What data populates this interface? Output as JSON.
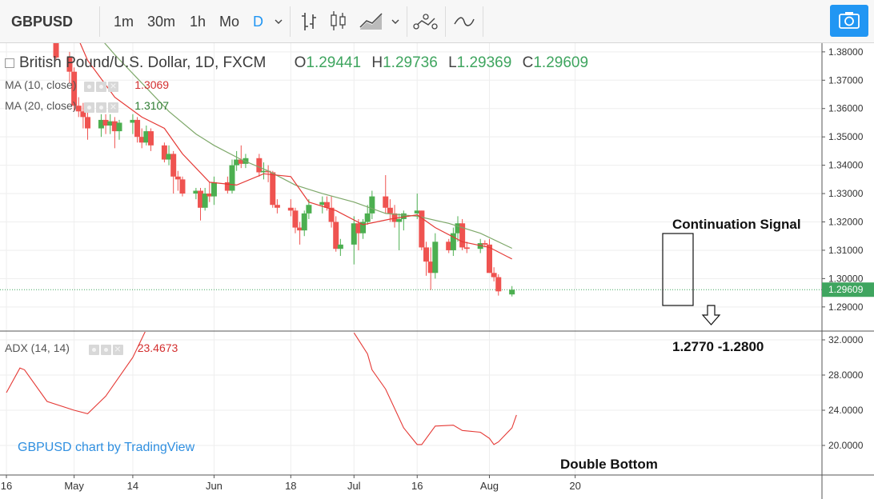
{
  "toolbar": {
    "symbol": "GBPUSD",
    "intervals": [
      "1m",
      "30m",
      "1h",
      "Mo",
      "D"
    ],
    "active_interval": "D",
    "dropdown_icon": "chevron-down-icon",
    "tools": [
      "bar-chart-icon",
      "candles-icon",
      "area-chart-icon",
      "chevron-down-icon",
      "indicators-icon",
      "compare-icon"
    ],
    "snapshot_icon": "camera-icon",
    "accent": "#2196f3"
  },
  "legend": {
    "instrument": "British Pound/U.S. Dollar, 1D, FXCM",
    "o_label": "O",
    "o": "1.29441",
    "h_label": "H",
    "h": "1.29736",
    "l_label": "L",
    "l": "1.29369",
    "c_label": "C",
    "c": "1.29609",
    "ma10_name": "MA (10, close)",
    "ma10_value": "1.3069",
    "ma20_name": "MA (20, close)",
    "ma20_value": "1.3107",
    "adx_name": "ADX (14, 14)",
    "adx_value": "23.4673"
  },
  "annotations": {
    "continuation": "Continuation Signal",
    "target": "1.2770 -1.2800",
    "double_bottom": "Double Bottom",
    "watermark": "GBPUSD chart by TradingView"
  },
  "colors": {
    "up": "#4caf50",
    "down": "#ef5350",
    "ma10": "#e53935",
    "ma20": "#7ea86a",
    "adx": "#e53935",
    "price_tag": "#3fa55f"
  },
  "chart_data": [
    {
      "type": "candlestick",
      "title": "British Pound/U.S. Dollar, 1D, FXCM",
      "ylim": [
        1.2825,
        1.3825
      ],
      "y_ticks": [
        "1.38000",
        "1.37000",
        "1.36000",
        "1.35000",
        "1.34000",
        "1.33000",
        "1.32000",
        "1.31000",
        "1.30000",
        "1.29000"
      ],
      "current_price": "1.29609",
      "x_tick_labels": [
        {
          "label": "16",
          "date": "2018-04-16"
        },
        {
          "label": "May",
          "date": "2018-05-01"
        },
        {
          "label": "14",
          "date": "2018-05-14"
        },
        {
          "label": "Jun",
          "date": "2018-06-01"
        },
        {
          "label": "18",
          "date": "2018-06-18"
        },
        {
          "label": "Jul",
          "date": "2018-07-02"
        },
        {
          "label": "16",
          "date": "2018-07-16"
        },
        {
          "label": "Aug",
          "date": "2018-08-01"
        },
        {
          "label": "20",
          "date": "2018-08-20"
        }
      ],
      "candles": [
        {
          "date": "2018-04-27",
          "o": 1.393,
          "h": 1.396,
          "l": 1.377,
          "c": 1.378
        },
        {
          "date": "2018-04-30",
          "o": 1.378,
          "h": 1.38,
          "l": 1.369,
          "c": 1.373
        },
        {
          "date": "2018-05-01",
          "o": 1.373,
          "h": 1.3745,
          "l": 1.359,
          "c": 1.361
        },
        {
          "date": "2018-05-02",
          "o": 1.361,
          "h": 1.364,
          "l": 1.357,
          "c": 1.359
        },
        {
          "date": "2018-05-03",
          "o": 1.359,
          "h": 1.362,
          "l": 1.353,
          "c": 1.357
        },
        {
          "date": "2018-05-04",
          "o": 1.357,
          "h": 1.36,
          "l": 1.349,
          "c": 1.353
        },
        {
          "date": "2018-05-07",
          "o": 1.353,
          "h": 1.358,
          "l": 1.35,
          "c": 1.356
        },
        {
          "date": "2018-05-08",
          "o": 1.356,
          "h": 1.358,
          "l": 1.351,
          "c": 1.354
        },
        {
          "date": "2018-05-09",
          "o": 1.354,
          "h": 1.358,
          "l": 1.351,
          "c": 1.3555
        },
        {
          "date": "2018-05-10",
          "o": 1.3555,
          "h": 1.357,
          "l": 1.346,
          "c": 1.352
        },
        {
          "date": "2018-05-11",
          "o": 1.352,
          "h": 1.356,
          "l": 1.349,
          "c": 1.355
        },
        {
          "date": "2018-05-14",
          "o": 1.355,
          "h": 1.358,
          "l": 1.351,
          "c": 1.356
        },
        {
          "date": "2018-05-15",
          "o": 1.356,
          "h": 1.357,
          "l": 1.348,
          "c": 1.35
        },
        {
          "date": "2018-05-16",
          "o": 1.35,
          "h": 1.353,
          "l": 1.346,
          "c": 1.348
        },
        {
          "date": "2018-05-17",
          "o": 1.348,
          "h": 1.354,
          "l": 1.347,
          "c": 1.352
        },
        {
          "date": "2018-05-18",
          "o": 1.352,
          "h": 1.353,
          "l": 1.345,
          "c": 1.347
        },
        {
          "date": "2018-05-21",
          "o": 1.347,
          "h": 1.348,
          "l": 1.341,
          "c": 1.342
        },
        {
          "date": "2018-05-22",
          "o": 1.342,
          "h": 1.347,
          "l": 1.34,
          "c": 1.344
        },
        {
          "date": "2018-05-23",
          "o": 1.344,
          "h": 1.345,
          "l": 1.33,
          "c": 1.336
        },
        {
          "date": "2018-05-24",
          "o": 1.336,
          "h": 1.338,
          "l": 1.331,
          "c": 1.335
        },
        {
          "date": "2018-05-25",
          "o": 1.335,
          "h": 1.336,
          "l": 1.329,
          "c": 1.33
        },
        {
          "date": "2018-05-28",
          "o": 1.33,
          "h": 1.332,
          "l": 1.328,
          "c": 1.331
        },
        {
          "date": "2018-05-29",
          "o": 1.331,
          "h": 1.332,
          "l": 1.3205,
          "c": 1.325
        },
        {
          "date": "2018-05-30",
          "o": 1.325,
          "h": 1.332,
          "l": 1.324,
          "c": 1.33
        },
        {
          "date": "2018-05-31",
          "o": 1.33,
          "h": 1.334,
          "l": 1.327,
          "c": 1.329
        },
        {
          "date": "2018-06-01",
          "o": 1.329,
          "h": 1.336,
          "l": 1.326,
          "c": 1.334
        },
        {
          "date": "2018-06-04",
          "o": 1.334,
          "h": 1.336,
          "l": 1.33,
          "c": 1.331
        },
        {
          "date": "2018-06-05",
          "o": 1.331,
          "h": 1.342,
          "l": 1.33,
          "c": 1.34
        },
        {
          "date": "2018-06-06",
          "o": 1.34,
          "h": 1.345,
          "l": 1.338,
          "c": 1.342
        },
        {
          "date": "2018-06-07",
          "o": 1.342,
          "h": 1.347,
          "l": 1.339,
          "c": 1.3405
        },
        {
          "date": "2018-06-08",
          "o": 1.3405,
          "h": 1.344,
          "l": 1.339,
          "c": 1.3425
        },
        {
          "date": "2018-06-11",
          "o": 1.3425,
          "h": 1.344,
          "l": 1.336,
          "c": 1.3375
        },
        {
          "date": "2018-06-12",
          "o": 1.3375,
          "h": 1.341,
          "l": 1.335,
          "c": 1.338
        },
        {
          "date": "2018-06-13",
          "o": 1.338,
          "h": 1.34,
          "l": 1.334,
          "c": 1.3375
        },
        {
          "date": "2018-06-14",
          "o": 1.3375,
          "h": 1.338,
          "l": 1.325,
          "c": 1.326
        },
        {
          "date": "2018-06-15",
          "o": 1.326,
          "h": 1.328,
          "l": 1.323,
          "c": 1.325
        },
        {
          "date": "2018-06-18",
          "o": 1.325,
          "h": 1.328,
          "l": 1.322,
          "c": 1.324
        },
        {
          "date": "2018-06-19",
          "o": 1.324,
          "h": 1.325,
          "l": 1.316,
          "c": 1.318
        },
        {
          "date": "2018-06-20",
          "o": 1.318,
          "h": 1.32,
          "l": 1.312,
          "c": 1.317
        },
        {
          "date": "2018-06-21",
          "o": 1.317,
          "h": 1.324,
          "l": 1.315,
          "c": 1.323
        },
        {
          "date": "2018-06-22",
          "o": 1.323,
          "h": 1.328,
          "l": 1.321,
          "c": 1.326
        },
        {
          "date": "2018-06-25",
          "o": 1.326,
          "h": 1.329,
          "l": 1.323,
          "c": 1.327
        },
        {
          "date": "2018-06-26",
          "o": 1.327,
          "h": 1.329,
          "l": 1.324,
          "c": 1.325
        },
        {
          "date": "2018-06-27",
          "o": 1.325,
          "h": 1.329,
          "l": 1.318,
          "c": 1.32
        },
        {
          "date": "2018-06-28",
          "o": 1.32,
          "h": 1.322,
          "l": 1.3095,
          "c": 1.3105
        },
        {
          "date": "2018-06-29",
          "o": 1.3105,
          "h": 1.314,
          "l": 1.308,
          "c": 1.312
        },
        {
          "date": "2018-07-02",
          "o": 1.312,
          "h": 1.322,
          "l": 1.305,
          "c": 1.3195
        },
        {
          "date": "2018-07-03",
          "o": 1.3195,
          "h": 1.321,
          "l": 1.31,
          "c": 1.316
        },
        {
          "date": "2018-07-04",
          "o": 1.316,
          "h": 1.321,
          "l": 1.314,
          "c": 1.32
        },
        {
          "date": "2018-07-05",
          "o": 1.32,
          "h": 1.326,
          "l": 1.319,
          "c": 1.323
        },
        {
          "date": "2018-07-06",
          "o": 1.323,
          "h": 1.331,
          "l": 1.321,
          "c": 1.329
        },
        {
          "date": "2018-07-09",
          "o": 1.329,
          "h": 1.3365,
          "l": 1.323,
          "c": 1.325
        },
        {
          "date": "2018-07-10",
          "o": 1.325,
          "h": 1.328,
          "l": 1.32,
          "c": 1.323
        },
        {
          "date": "2018-07-11",
          "o": 1.323,
          "h": 1.326,
          "l": 1.318,
          "c": 1.32
        },
        {
          "date": "2018-07-12",
          "o": 1.32,
          "h": 1.323,
          "l": 1.31,
          "c": 1.321
        },
        {
          "date": "2018-07-13",
          "o": 1.321,
          "h": 1.324,
          "l": 1.317,
          "c": 1.323
        },
        {
          "date": "2018-07-16",
          "o": 1.323,
          "h": 1.33,
          "l": 1.321,
          "c": 1.324
        },
        {
          "date": "2018-07-17",
          "o": 1.324,
          "h": 1.324,
          "l": 1.31,
          "c": 1.311
        },
        {
          "date": "2018-07-18",
          "o": 1.311,
          "h": 1.313,
          "l": 1.301,
          "c": 1.306
        },
        {
          "date": "2018-07-19",
          "o": 1.306,
          "h": 1.311,
          "l": 1.296,
          "c": 1.302
        },
        {
          "date": "2018-07-20",
          "o": 1.302,
          "h": 1.316,
          "l": 1.3,
          "c": 1.313
        },
        {
          "date": "2018-07-23",
          "o": 1.313,
          "h": 1.314,
          "l": 1.309,
          "c": 1.31
        },
        {
          "date": "2018-07-24",
          "o": 1.31,
          "h": 1.318,
          "l": 1.308,
          "c": 1.316
        },
        {
          "date": "2018-07-25",
          "o": 1.316,
          "h": 1.322,
          "l": 1.313,
          "c": 1.3195
        },
        {
          "date": "2018-07-26",
          "o": 1.3195,
          "h": 1.321,
          "l": 1.31,
          "c": 1.311
        },
        {
          "date": "2018-07-27",
          "o": 1.311,
          "h": 1.313,
          "l": 1.309,
          "c": 1.3105
        },
        {
          "date": "2018-07-30",
          "o": 1.3105,
          "h": 1.314,
          "l": 1.309,
          "c": 1.3125
        },
        {
          "date": "2018-07-31",
          "o": 1.3125,
          "h": 1.3135,
          "l": 1.311,
          "c": 1.312
        },
        {
          "date": "2018-08-01",
          "o": 1.312,
          "h": 1.314,
          "l": 1.302,
          "c": 1.302
        },
        {
          "date": "2018-08-02",
          "o": 1.302,
          "h": 1.304,
          "l": 1.299,
          "c": 1.3005
        },
        {
          "date": "2018-08-03",
          "o": 1.3005,
          "h": 1.3015,
          "l": 1.294,
          "c": 1.2955
        },
        {
          "date": "2018-08-06",
          "o": 1.29441,
          "h": 1.29736,
          "l": 1.29369,
          "c": 1.29609
        }
      ],
      "ma10": [
        {
          "date": "2018-05-01",
          "v": 1.388
        },
        {
          "date": "2018-05-04",
          "v": 1.377
        },
        {
          "date": "2018-05-10",
          "v": 1.364
        },
        {
          "date": "2018-05-16",
          "v": 1.357
        },
        {
          "date": "2018-05-21",
          "v": 1.353
        },
        {
          "date": "2018-05-25",
          "v": 1.344
        },
        {
          "date": "2018-05-31",
          "v": 1.334
        },
        {
          "date": "2018-06-06",
          "v": 1.333
        },
        {
          "date": "2018-06-12",
          "v": 1.337
        },
        {
          "date": "2018-06-18",
          "v": 1.336
        },
        {
          "date": "2018-06-22",
          "v": 1.327
        },
        {
          "date": "2018-06-28",
          "v": 1.324
        },
        {
          "date": "2018-07-04",
          "v": 1.319
        },
        {
          "date": "2018-07-10",
          "v": 1.321
        },
        {
          "date": "2018-07-16",
          "v": 1.3225
        },
        {
          "date": "2018-07-20",
          "v": 1.318
        },
        {
          "date": "2018-07-26",
          "v": 1.313
        },
        {
          "date": "2018-08-01",
          "v": 1.311
        },
        {
          "date": "2018-08-06",
          "v": 1.3069
        }
      ],
      "ma20": [
        {
          "date": "2018-05-04",
          "v": 1.39
        },
        {
          "date": "2018-05-10",
          "v": 1.379
        },
        {
          "date": "2018-05-16",
          "v": 1.369
        },
        {
          "date": "2018-05-22",
          "v": 1.359
        },
        {
          "date": "2018-05-28",
          "v": 1.351
        },
        {
          "date": "2018-06-01",
          "v": 1.347
        },
        {
          "date": "2018-06-07",
          "v": 1.342
        },
        {
          "date": "2018-06-13",
          "v": 1.338
        },
        {
          "date": "2018-06-19",
          "v": 1.333
        },
        {
          "date": "2018-06-25",
          "v": 1.33
        },
        {
          "date": "2018-07-02",
          "v": 1.327
        },
        {
          "date": "2018-07-09",
          "v": 1.323
        },
        {
          "date": "2018-07-16",
          "v": 1.322
        },
        {
          "date": "2018-07-23",
          "v": 1.3195
        },
        {
          "date": "2018-07-30",
          "v": 1.316
        },
        {
          "date": "2018-08-06",
          "v": 1.3107
        }
      ]
    },
    {
      "type": "line",
      "title": "ADX (14, 14)",
      "ylim": [
        17.0,
        33.0
      ],
      "y_ticks": [
        "32.0000",
        "28.0000",
        "24.0000",
        "20.0000"
      ],
      "series": [
        {
          "name": "ADX (14, 14)",
          "points": [
            {
              "date": "2018-04-16",
              "v": 26.0
            },
            {
              "date": "2018-04-19",
              "v": 28.8
            },
            {
              "date": "2018-04-20",
              "v": 28.6
            },
            {
              "date": "2018-04-25",
              "v": 25.0
            },
            {
              "date": "2018-05-01",
              "v": 24.0
            },
            {
              "date": "2018-05-04",
              "v": 23.6
            },
            {
              "date": "2018-05-08",
              "v": 25.6
            },
            {
              "date": "2018-05-14",
              "v": 30.0
            },
            {
              "date": "2018-05-17",
              "v": 33.2
            }
          ]
        },
        {
          "name": "ADX (14, 14)",
          "points": [
            {
              "date": "2018-07-02",
              "v": 32.8
            },
            {
              "date": "2018-07-05",
              "v": 30.4
            },
            {
              "date": "2018-07-06",
              "v": 28.6
            },
            {
              "date": "2018-07-09",
              "v": 26.4
            },
            {
              "date": "2018-07-13",
              "v": 22.0
            },
            {
              "date": "2018-07-16",
              "v": 20.1
            },
            {
              "date": "2018-07-17",
              "v": 20.1
            },
            {
              "date": "2018-07-20",
              "v": 22.2
            },
            {
              "date": "2018-07-24",
              "v": 22.3
            },
            {
              "date": "2018-07-26",
              "v": 21.7
            },
            {
              "date": "2018-07-30",
              "v": 21.5
            },
            {
              "date": "2018-08-01",
              "v": 20.8
            },
            {
              "date": "2018-08-02",
              "v": 20.1
            },
            {
              "date": "2018-08-03",
              "v": 20.4
            },
            {
              "date": "2018-08-06",
              "v": 22.0
            },
            {
              "date": "2018-08-07",
              "v": 23.4673
            }
          ]
        }
      ]
    }
  ]
}
